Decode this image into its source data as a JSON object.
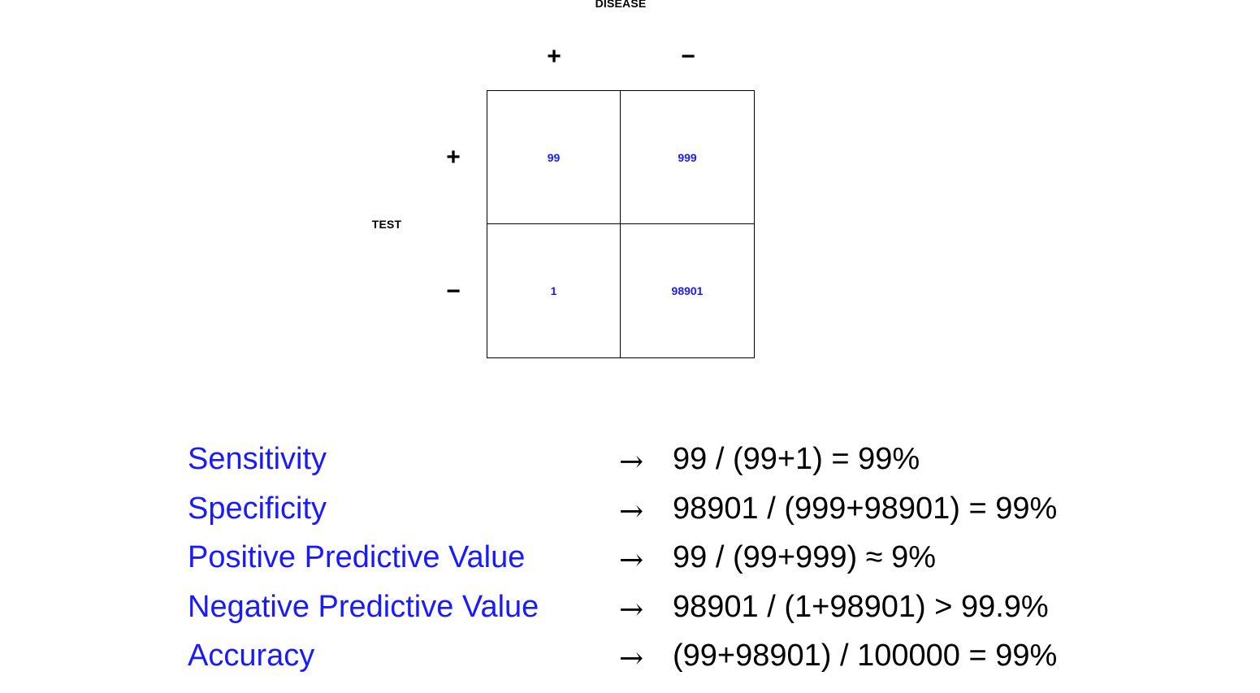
{
  "matrix": {
    "column_axis_title": "DISEASE",
    "row_axis_title": "TEST",
    "column_headers": [
      "+",
      "−"
    ],
    "row_headers": [
      "+",
      "−"
    ],
    "cells": [
      [
        "99",
        "999"
      ],
      [
        "1",
        "98901"
      ]
    ]
  },
  "metrics": [
    {
      "label": "Sensitivity",
      "arrow": "→",
      "formula": "99 / (99+1) = 99%"
    },
    {
      "label": "Specificity",
      "arrow": "→",
      "formula": "98901 / (999+98901) = 99%"
    },
    {
      "label": "Positive Predictive Value",
      "arrow": "→",
      "formula": "99 / (99+999) ≈ 9%"
    },
    {
      "label": "Negative Predictive Value",
      "arrow": "→",
      "formula": "98901 / (1+98901) > 99.9%"
    },
    {
      "label": "Accuracy",
      "arrow": "→",
      "formula": "(99+98901) / 100000 = 99%"
    }
  ],
  "colors": {
    "label_blue": "#1a1aff",
    "text_black": "#000000"
  }
}
